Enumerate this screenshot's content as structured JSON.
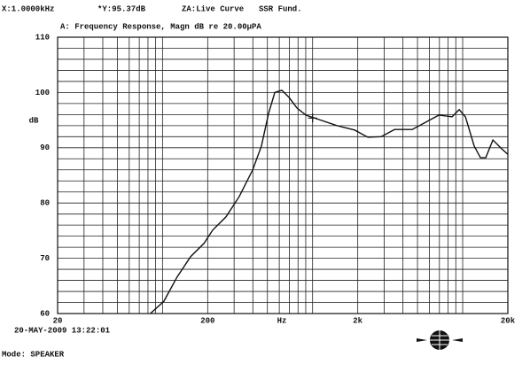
{
  "header": {
    "cursor_x": "X:1.0000kHz",
    "cursor_y": "*Y:95.37dB",
    "curve": "ZA:Live Curve",
    "mode_label": "SSR Fund."
  },
  "chart_data": {
    "type": "line",
    "title": "A: Frequency Response, Magn dB re 20.00µPA",
    "x_label": "Hz",
    "y_label": "dB",
    "log_x": true,
    "grid": true,
    "color": "#111111",
    "xlim": [
      20,
      20000
    ],
    "ylim": [
      60,
      110
    ],
    "xticks": [
      20,
      200,
      {
        "value": 2000,
        "label": "2k"
      },
      {
        "value": 20000,
        "label": "20k"
      }
    ],
    "yticks": [
      60,
      70,
      80,
      90,
      100,
      110
    ],
    "xminorticks": [
      30,
      40,
      50,
      60,
      70,
      80,
      90,
      100,
      300,
      400,
      500,
      600,
      700,
      800,
      900,
      1000,
      3000,
      4000,
      5000,
      6000,
      7000,
      8000,
      9000,
      10000
    ],
    "yminorticks": [
      62,
      64,
      66,
      68,
      72,
      74,
      76,
      78,
      82,
      84,
      86,
      88,
      92,
      94,
      96,
      98,
      102,
      104,
      106,
      108
    ],
    "x": [
      83,
      102,
      125,
      154,
      189,
      216,
      265,
      325,
      399,
      456,
      509,
      560,
      624,
      697,
      787,
      902,
      1105,
      1451,
      1906,
      2336,
      2862,
      3515,
      4614,
      5652,
      6932,
      8497,
      9480,
      10430,
      11940,
      13140,
      14250,
      15900,
      18200,
      20000
    ],
    "values": [
      60,
      62.2,
      66.6,
      70.3,
      72.7,
      75.1,
      77.5,
      81.2,
      86,
      90.3,
      96.2,
      100,
      100.4,
      99.1,
      97.2,
      95.9,
      95.1,
      94,
      93.2,
      91.9,
      92,
      93.3,
      93.3,
      94.6,
      95.9,
      95.6,
      96.9,
      95.6,
      90.3,
      88.2,
      88.2,
      91.4,
      89.8,
      88.8
    ],
    "cursor": {
      "x": 1000,
      "y": 95.37
    }
  },
  "footer": {
    "timestamp": "20-MAY-2009 13:22:01",
    "mode": "Mode: SPEAKER"
  }
}
